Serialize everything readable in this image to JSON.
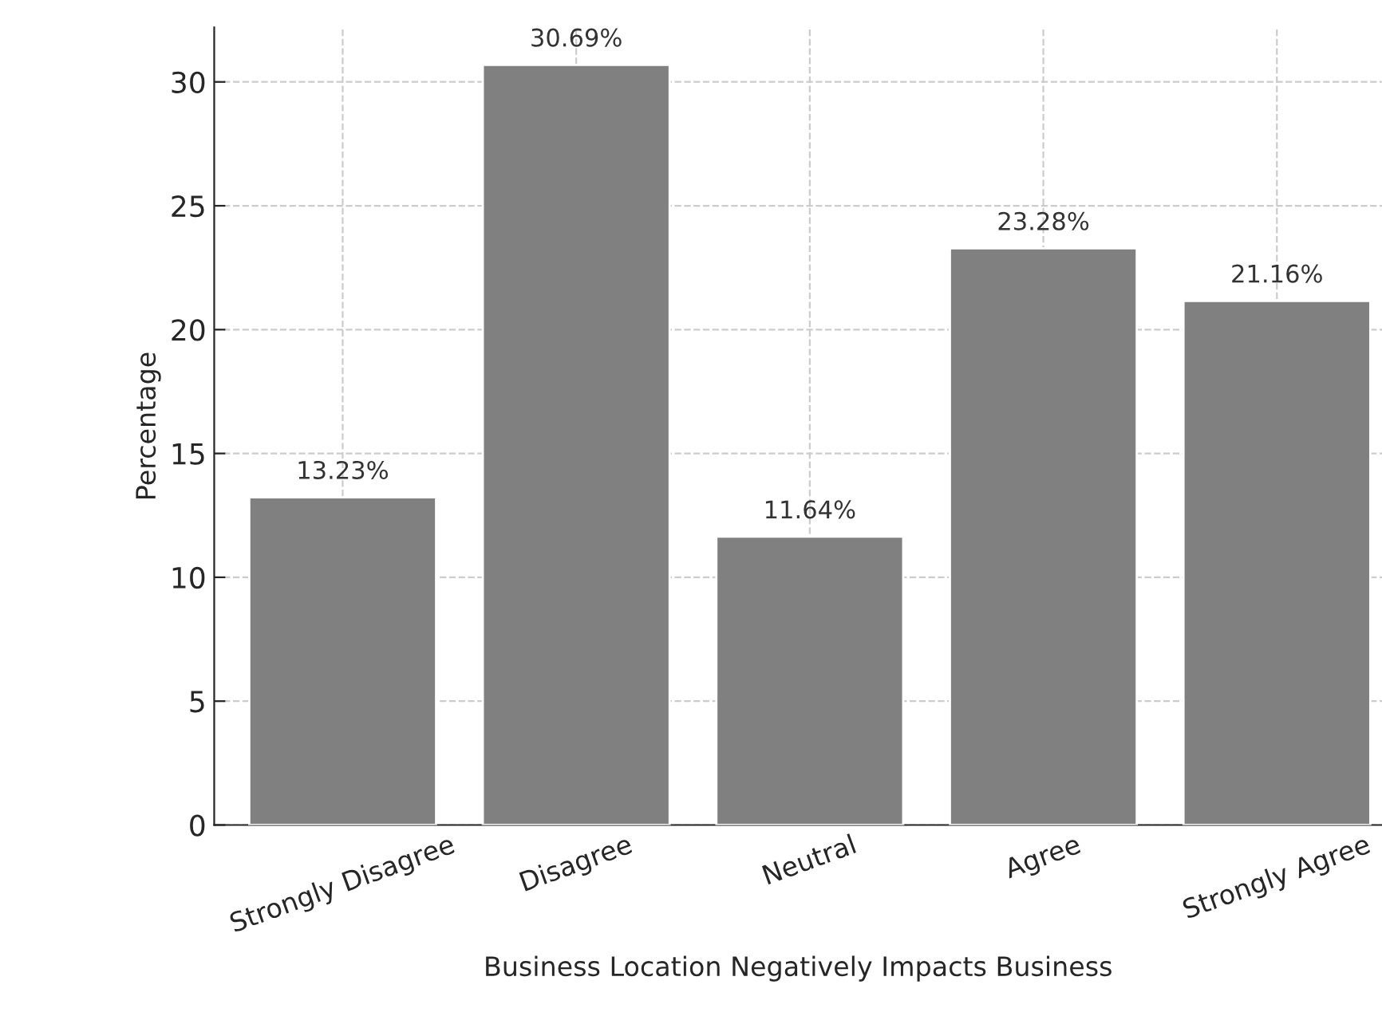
{
  "chart_data": {
    "type": "bar",
    "xlabel": "Business Location Negatively Impacts Business",
    "ylabel": "Percentage",
    "categories": [
      "Strongly Disagree",
      "Disagree",
      "Neutral",
      "Agree",
      "Strongly Agree"
    ],
    "values": [
      13.23,
      30.69,
      11.64,
      23.28,
      21.16
    ],
    "color": "#808080",
    "value_labels": [
      "13.23%",
      "30.69%",
      "11.64%",
      "23.28%",
      "21.16%"
    ],
    "ylim": [
      0,
      32.2
    ],
    "yticks": [
      0,
      5,
      10,
      15,
      20,
      25,
      30
    ],
    "grid": true
  }
}
